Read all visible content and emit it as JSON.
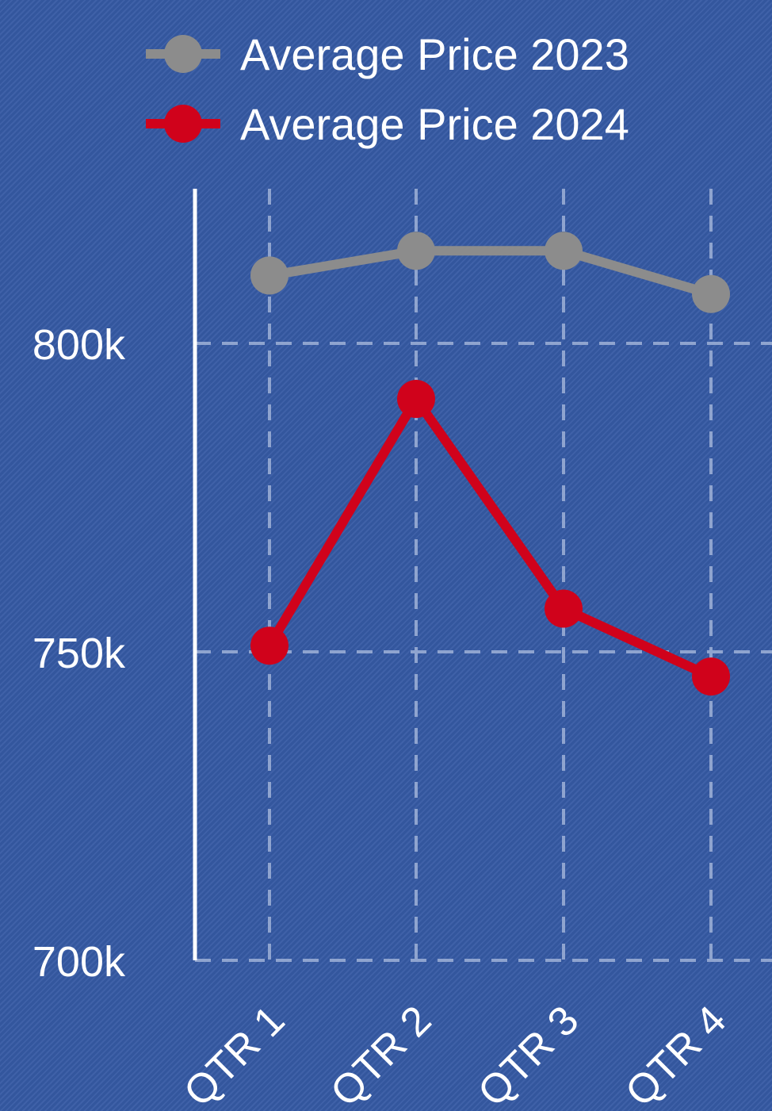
{
  "chart_data": {
    "type": "line",
    "title": "",
    "xlabel": "",
    "ylabel": "",
    "categories": [
      "QTR 1",
      "QTR 2",
      "QTR 3",
      "QTR 4"
    ],
    "series": [
      {
        "name": "Average Price 2023",
        "values": [
          811,
          815,
          815,
          808
        ],
        "color": "#8c8c8c"
      },
      {
        "name": "Average Price 2024",
        "values": [
          751,
          791,
          757,
          746
        ],
        "color": "#d0021b"
      }
    ],
    "yticks": [
      {
        "value": 700,
        "label": "700k"
      },
      {
        "value": 750,
        "label": "750k"
      },
      {
        "value": 800,
        "label": "800k"
      }
    ],
    "ylim": [
      700,
      825
    ],
    "grid": true,
    "legend_position": "top",
    "colors": {
      "background": "#3559a3",
      "axis": "#ffffff",
      "grid": "#8fa4cf",
      "text": "#ffffff"
    }
  }
}
